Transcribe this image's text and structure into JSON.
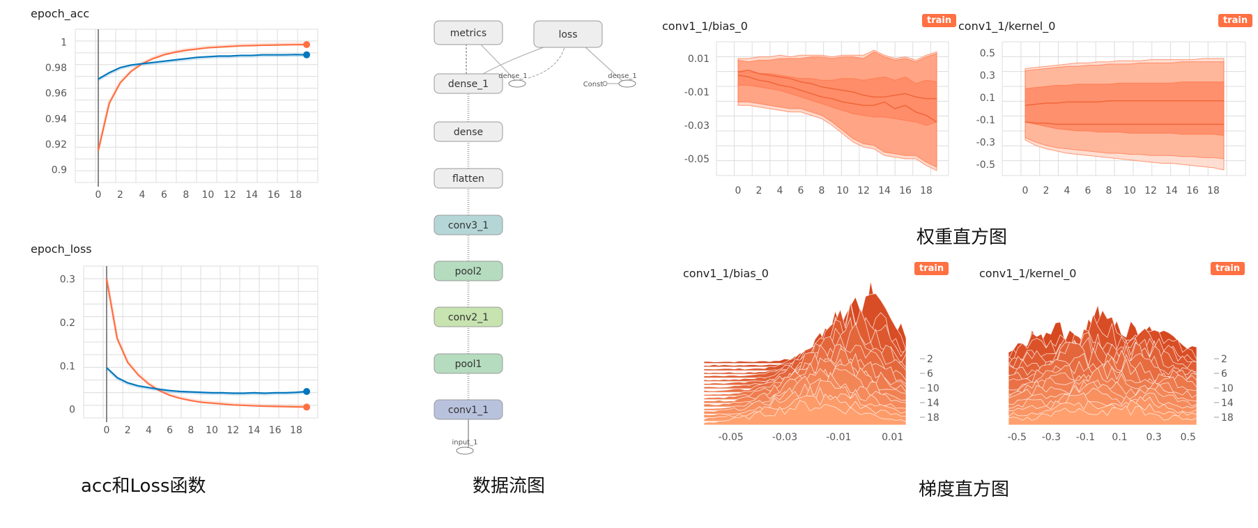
{
  "colors": {
    "orange": "#ff7043",
    "blue": "#0277bd",
    "band1": "#ffd2c2",
    "band2": "#ff9a78",
    "band3": "#ff8a65"
  },
  "captions": {
    "scalars": "acc和Loss函数",
    "graph": "数据流图",
    "weights": "权重直方图",
    "grads": "梯度直方图"
  },
  "badge": "train",
  "graph": {
    "nodes": [
      "metrics",
      "loss",
      "dense_1",
      "dense",
      "flatten",
      "conv3_1",
      "pool2",
      "conv2_1",
      "pool1",
      "conv1_1"
    ],
    "small_labels": [
      "dense_1",
      "Const",
      "dense_1",
      "input_1"
    ]
  },
  "chart_data": [
    {
      "type": "line",
      "title": "epoch_acc",
      "x": [
        0,
        1,
        2,
        3,
        4,
        5,
        6,
        7,
        8,
        9,
        10,
        11,
        12,
        13,
        14,
        15,
        16,
        17,
        18,
        19
      ],
      "xticks": [
        "0",
        "2",
        "4",
        "6",
        "8",
        "10",
        "12",
        "14",
        "16",
        "18"
      ],
      "yticks": [
        "0.9",
        "0.92",
        "0.94",
        "0.96",
        "0.98",
        "1"
      ],
      "ylim": [
        0.89,
        1.01
      ],
      "series": [
        {
          "color": "#ff7043",
          "values": [
            0.915,
            0.952,
            0.968,
            0.977,
            0.983,
            0.987,
            0.99,
            0.992,
            0.9935,
            0.9945,
            0.9955,
            0.996,
            0.9965,
            0.997,
            0.9972,
            0.9975,
            0.9976,
            0.9978,
            0.9979,
            0.998
          ]
        },
        {
          "color": "#0277bd",
          "values": [
            0.971,
            0.976,
            0.98,
            0.982,
            0.983,
            0.984,
            0.985,
            0.986,
            0.987,
            0.988,
            0.9885,
            0.989,
            0.989,
            0.9895,
            0.9895,
            0.99,
            0.99,
            0.99,
            0.9902,
            0.99
          ]
        }
      ]
    },
    {
      "type": "line",
      "title": "epoch_loss",
      "x": [
        0,
        1,
        2,
        3,
        4,
        5,
        6,
        7,
        8,
        9,
        10,
        11,
        12,
        13,
        14,
        15,
        16,
        17,
        18,
        19
      ],
      "xticks": [
        "0",
        "2",
        "4",
        "6",
        "8",
        "10",
        "12",
        "14",
        "16",
        "18"
      ],
      "yticks": [
        "0",
        "0.1",
        "0.2",
        "0.3"
      ],
      "ylim": [
        -0.02,
        0.33
      ],
      "series": [
        {
          "color": "#ff7043",
          "values": [
            0.3,
            0.163,
            0.108,
            0.079,
            0.058,
            0.043,
            0.032,
            0.025,
            0.02,
            0.016,
            0.014,
            0.012,
            0.01,
            0.009,
            0.008,
            0.007,
            0.0065,
            0.006,
            0.0055,
            0.005
          ]
        },
        {
          "color": "#0277bd",
          "values": [
            0.096,
            0.073,
            0.061,
            0.054,
            0.05,
            0.046,
            0.043,
            0.041,
            0.04,
            0.039,
            0.038,
            0.038,
            0.037,
            0.037,
            0.038,
            0.037,
            0.038,
            0.038,
            0.039,
            0.041
          ]
        }
      ]
    },
    {
      "type": "area",
      "title": "conv1_1/bias_0",
      "x": [
        0,
        1,
        2,
        3,
        4,
        5,
        6,
        7,
        8,
        9,
        10,
        11,
        12,
        13,
        14,
        15,
        16,
        17,
        18,
        19
      ],
      "xticks": [
        "0",
        "2",
        "4",
        "6",
        "8",
        "10",
        "12",
        "14",
        "16",
        "18"
      ],
      "yticks": [
        "0.01",
        "-0.01",
        "-0.03",
        "-0.05"
      ],
      "ylim": [
        -0.06,
        0.02
      ],
      "bands": [
        {
          "color": "#ffd2c2",
          "upper": [
            0.01,
            0.01,
            0.011,
            0.011,
            0.012,
            0.011,
            0.012,
            0.012,
            0.012,
            0.011,
            0.012,
            0.012,
            0.012,
            0.015,
            0.012,
            0.01,
            0.011,
            0.009,
            0.012,
            0.014
          ],
          "lower": [
            -0.018,
            -0.018,
            -0.019,
            -0.02,
            -0.021,
            -0.022,
            -0.022,
            -0.024,
            -0.026,
            -0.03,
            -0.035,
            -0.04,
            -0.043,
            -0.044,
            -0.048,
            -0.049,
            -0.05,
            -0.05,
            -0.054,
            -0.057
          ]
        },
        {
          "color": "#ff9a78",
          "upper": [
            0.009,
            0.008,
            0.009,
            0.009,
            0.01,
            0.01,
            0.01,
            0.011,
            0.011,
            0.01,
            0.011,
            0.011,
            0.01,
            0.014,
            0.011,
            0.009,
            0.01,
            0.008,
            0.011,
            0.013
          ],
          "lower": [
            -0.016,
            -0.016,
            -0.017,
            -0.018,
            -0.019,
            -0.02,
            -0.02,
            -0.022,
            -0.024,
            -0.028,
            -0.033,
            -0.038,
            -0.041,
            -0.042,
            -0.046,
            -0.047,
            -0.048,
            -0.048,
            -0.052,
            -0.055
          ]
        },
        {
          "color": "#ff8a65",
          "upper": [
            0.002,
            0.002,
            0.001,
            0.001,
            0.0,
            -0.001,
            -0.002,
            -0.002,
            -0.003,
            -0.003,
            -0.002,
            -0.002,
            -0.003,
            -0.002,
            -0.001,
            -0.003,
            -0.001,
            -0.005,
            -0.003,
            -0.004
          ],
          "lower": [
            -0.006,
            -0.006,
            -0.007,
            -0.008,
            -0.009,
            -0.011,
            -0.013,
            -0.015,
            -0.017,
            -0.019,
            -0.021,
            -0.023,
            -0.024,
            -0.025,
            -0.025,
            -0.026,
            -0.027,
            -0.028,
            -0.03,
            -0.028
          ]
        }
      ],
      "lines": [
        [
          0.002,
          0.003,
          0.001,
          0.0,
          -0.001,
          -0.002,
          -0.004,
          -0.005,
          -0.007,
          -0.008,
          -0.009,
          -0.01,
          -0.012,
          -0.013,
          -0.013,
          -0.012,
          -0.011,
          -0.013,
          -0.014,
          -0.014
        ],
        [
          0.0,
          -0.001,
          -0.003,
          -0.004,
          -0.006,
          -0.007,
          -0.009,
          -0.011,
          -0.013,
          -0.014,
          -0.016,
          -0.017,
          -0.018,
          -0.018,
          -0.016,
          -0.02,
          -0.018,
          -0.022,
          -0.024,
          -0.028
        ]
      ]
    },
    {
      "type": "area",
      "title": "conv1_1/kernel_0",
      "x": [
        0,
        1,
        2,
        3,
        4,
        5,
        6,
        7,
        8,
        9,
        10,
        11,
        12,
        13,
        14,
        15,
        16,
        17,
        18,
        19
      ],
      "xticks": [
        "0",
        "2",
        "4",
        "6",
        "8",
        "10",
        "12",
        "14",
        "16",
        "18"
      ],
      "yticks": [
        "0.5",
        "0.3",
        "0.1",
        "-0.1",
        "-0.3",
        "-0.5"
      ],
      "ylim": [
        -0.6,
        0.6
      ],
      "bands": [
        {
          "color": "#ffd8ca",
          "upper": [
            0.36,
            0.37,
            0.38,
            0.39,
            0.4,
            0.41,
            0.41,
            0.42,
            0.42,
            0.43,
            0.43,
            0.43,
            0.44,
            0.44,
            0.44,
            0.44,
            0.44,
            0.45,
            0.45,
            0.45
          ],
          "lower": [
            -0.28,
            -0.33,
            -0.36,
            -0.38,
            -0.4,
            -0.41,
            -0.42,
            -0.43,
            -0.44,
            -0.45,
            -0.46,
            -0.47,
            -0.48,
            -0.49,
            -0.49,
            -0.5,
            -0.51,
            -0.52,
            -0.53,
            -0.55
          ]
        },
        {
          "color": "#ffb093",
          "upper": [
            0.34,
            0.35,
            0.36,
            0.37,
            0.38,
            0.38,
            0.39,
            0.39,
            0.4,
            0.4,
            0.4,
            0.41,
            0.41,
            0.41,
            0.41,
            0.42,
            0.42,
            0.42,
            0.42,
            0.42
          ],
          "lower": [
            -0.26,
            -0.3,
            -0.33,
            -0.35,
            -0.36,
            -0.37,
            -0.38,
            -0.39,
            -0.4,
            -0.4,
            -0.41,
            -0.41,
            -0.42,
            -0.42,
            -0.42,
            -0.43,
            -0.43,
            -0.44,
            -0.44,
            -0.45
          ]
        },
        {
          "color": "#ff8a65",
          "upper": [
            0.18,
            0.19,
            0.2,
            0.21,
            0.21,
            0.22,
            0.22,
            0.22,
            0.22,
            0.23,
            0.23,
            0.23,
            0.23,
            0.23,
            0.23,
            0.24,
            0.24,
            0.24,
            0.24,
            0.24
          ],
          "lower": [
            -0.12,
            -0.14,
            -0.16,
            -0.18,
            -0.19,
            -0.2,
            -0.2,
            -0.21,
            -0.21,
            -0.21,
            -0.22,
            -0.22,
            -0.22,
            -0.22,
            -0.22,
            -0.23,
            -0.23,
            -0.23,
            -0.23,
            -0.24
          ]
        }
      ],
      "lines": [
        [
          0.03,
          0.04,
          0.05,
          0.05,
          0.06,
          0.06,
          0.06,
          0.06,
          0.07,
          0.07,
          0.07,
          0.07,
          0.07,
          0.07,
          0.07,
          0.07,
          0.07,
          0.07,
          0.07,
          0.07
        ],
        [
          -0.12,
          -0.13,
          -0.13,
          -0.14,
          -0.14,
          -0.14,
          -0.14,
          -0.14,
          -0.14,
          -0.14,
          -0.14,
          -0.14,
          -0.14,
          -0.14,
          -0.14,
          -0.14,
          -0.14,
          -0.14,
          -0.14,
          -0.14
        ]
      ]
    },
    {
      "type": "histogram-3d",
      "title": "conv1_1/bias_0",
      "xticks": [
        "-0.05",
        "-0.03",
        "-0.01",
        "0.01"
      ],
      "yticks": [
        "2",
        "6",
        "10",
        "14",
        "18"
      ],
      "xlim": [
        -0.06,
        0.015
      ]
    },
    {
      "type": "histogram-3d",
      "title": "conv1_1/kernel_0",
      "xticks": [
        "-0.5",
        "-0.3",
        "-0.1",
        "0.1",
        "0.3",
        "0.5"
      ],
      "yticks": [
        "2",
        "6",
        "10",
        "14",
        "18"
      ],
      "xlim": [
        -0.55,
        0.55
      ]
    }
  ]
}
